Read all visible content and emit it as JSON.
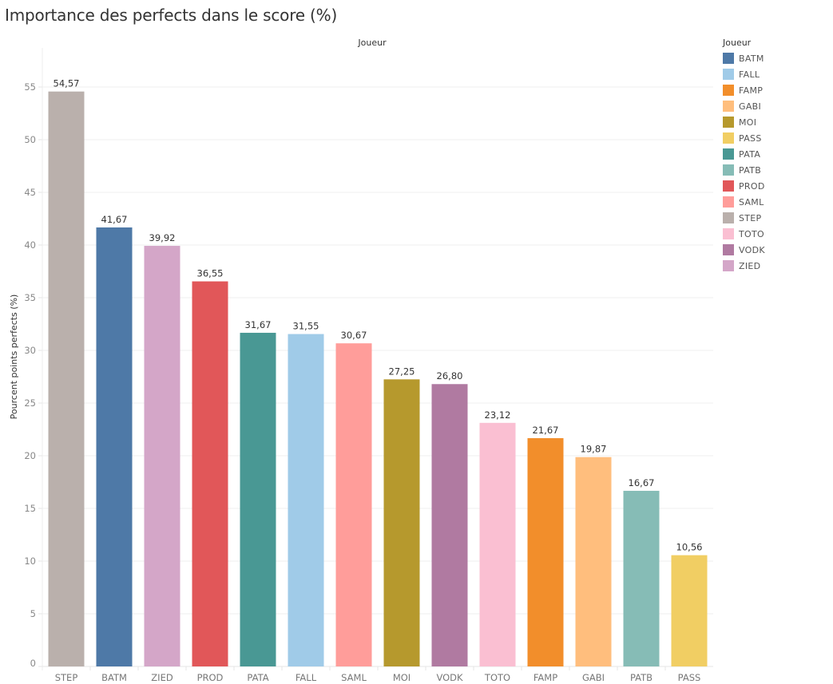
{
  "chart_data": {
    "type": "bar",
    "title": "Importance des perfects dans le score (%)",
    "column_header": "Joueur",
    "xlabel": "",
    "ylabel": "Pourcent points perfects (%)",
    "ylim": [
      0,
      55
    ],
    "yticks": [
      0,
      5,
      10,
      15,
      20,
      25,
      30,
      35,
      40,
      45,
      50,
      55
    ],
    "grid": true,
    "categories": [
      "STEP",
      "BATM",
      "ZIED",
      "PROD",
      "PATA",
      "FALL",
      "SAML",
      "MOI",
      "VODK",
      "TOTO",
      "FAMP",
      "GABI",
      "PATB",
      "PASS"
    ],
    "values": [
      54.57,
      41.67,
      39.92,
      36.55,
      31.67,
      31.55,
      30.67,
      27.25,
      26.8,
      23.12,
      21.67,
      19.87,
      16.67,
      10.56
    ],
    "data_labels": [
      "54,57",
      "41,67",
      "39,92",
      "36,55",
      "31,67",
      "31,55",
      "30,67",
      "27,25",
      "26,80",
      "23,12",
      "21,67",
      "19,87",
      "16,67",
      "10,56"
    ],
    "legend_placement": "right",
    "legend": {
      "title": "Joueur",
      "items": [
        {
          "label": "BATM",
          "color": "#4e79a7"
        },
        {
          "label": "FALL",
          "color": "#a0cbe8"
        },
        {
          "label": "FAMP",
          "color": "#f28e2b"
        },
        {
          "label": "GABI",
          "color": "#ffbe7d"
        },
        {
          "label": "MOI",
          "color": "#b6992d"
        },
        {
          "label": "PASS",
          "color": "#f1ce63"
        },
        {
          "label": "PATA",
          "color": "#499894"
        },
        {
          "label": "PATB",
          "color": "#86bcb6"
        },
        {
          "label": "PROD",
          "color": "#e15759"
        },
        {
          "label": "SAML",
          "color": "#ff9d9a"
        },
        {
          "label": "STEP",
          "color": "#bab0ac"
        },
        {
          "label": "TOTO",
          "color": "#fabfd2"
        },
        {
          "label": "VODK",
          "color": "#b07aa1"
        },
        {
          "label": "ZIED",
          "color": "#d4a6c8"
        }
      ]
    }
  }
}
